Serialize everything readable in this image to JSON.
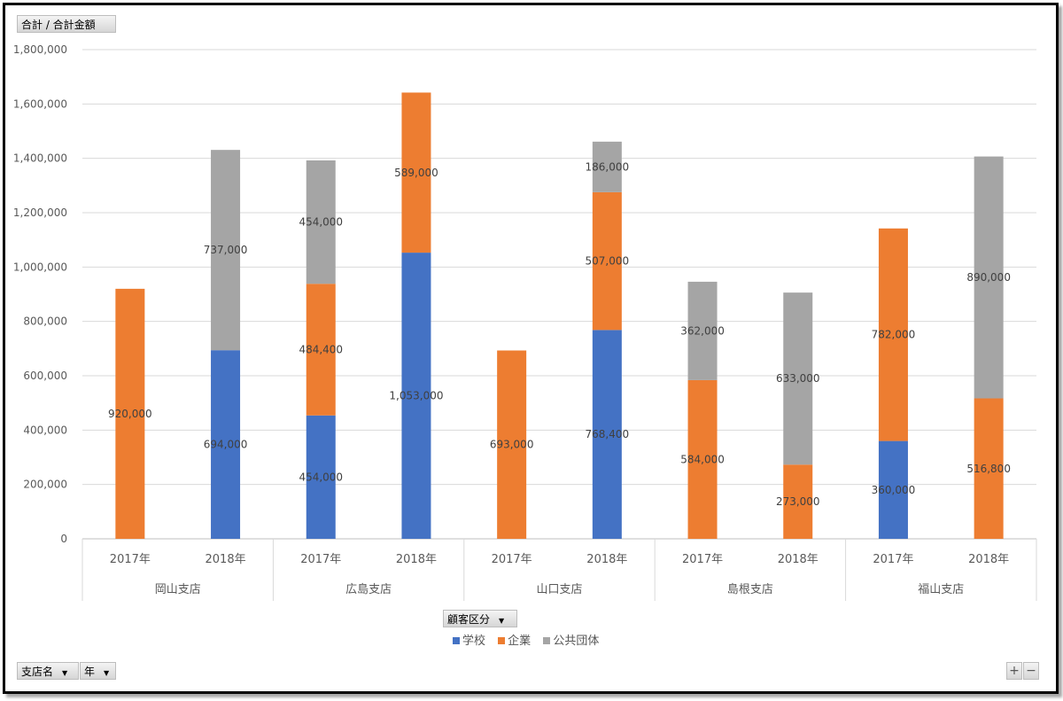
{
  "value_field": "合計 / 合計金額",
  "legend_field": "顧客区分",
  "row_fields": [
    "支店名",
    "年"
  ],
  "zoom": {
    "plus": "+",
    "minus": "−"
  },
  "chart_data": {
    "type": "bar",
    "stacked": true,
    "title": "",
    "ylim": [
      0,
      1800000
    ],
    "yticks": [
      0,
      200000,
      400000,
      600000,
      800000,
      1000000,
      1200000,
      1400000,
      1600000,
      1800000
    ],
    "ytick_labels": [
      "0",
      "200,000",
      "400,000",
      "600,000",
      "800,000",
      "1,000,000",
      "1,200,000",
      "1,400,000",
      "1,600,000",
      "1,800,000"
    ],
    "groups": [
      "岡山支店",
      "広島支店",
      "山口支店",
      "島根支店",
      "福山支店"
    ],
    "categories": [
      "2017年",
      "2018年",
      "2017年",
      "2018年",
      "2017年",
      "2018年",
      "2017年",
      "2018年",
      "2017年",
      "2018年"
    ],
    "series": [
      {
        "name": "学校",
        "color": "#4472c4",
        "values": [
          null,
          694000,
          454000,
          1053000,
          null,
          768400,
          null,
          null,
          360000,
          null
        ],
        "labels": [
          "",
          "694,000",
          "454,000",
          "1,053,000",
          "",
          "768,400",
          "",
          "",
          "360,000",
          ""
        ]
      },
      {
        "name": "企業",
        "color": "#ed7d31",
        "values": [
          920000,
          null,
          484400,
          589000,
          693000,
          507000,
          584000,
          273000,
          782000,
          516800
        ],
        "labels": [
          "920,000",
          "",
          "484,400",
          "589,000",
          "693,000",
          "507,000",
          "584,000",
          "273,000",
          "782,000",
          "516,800"
        ]
      },
      {
        "name": "公共団体",
        "color": "#a5a5a5",
        "values": [
          null,
          737000,
          454000,
          null,
          null,
          186000,
          362000,
          633000,
          null,
          890000
        ],
        "labels": [
          "",
          "737,000",
          "454,000",
          "",
          "",
          "186,000",
          "362,000",
          "633,000",
          "",
          "890,000"
        ]
      }
    ]
  }
}
